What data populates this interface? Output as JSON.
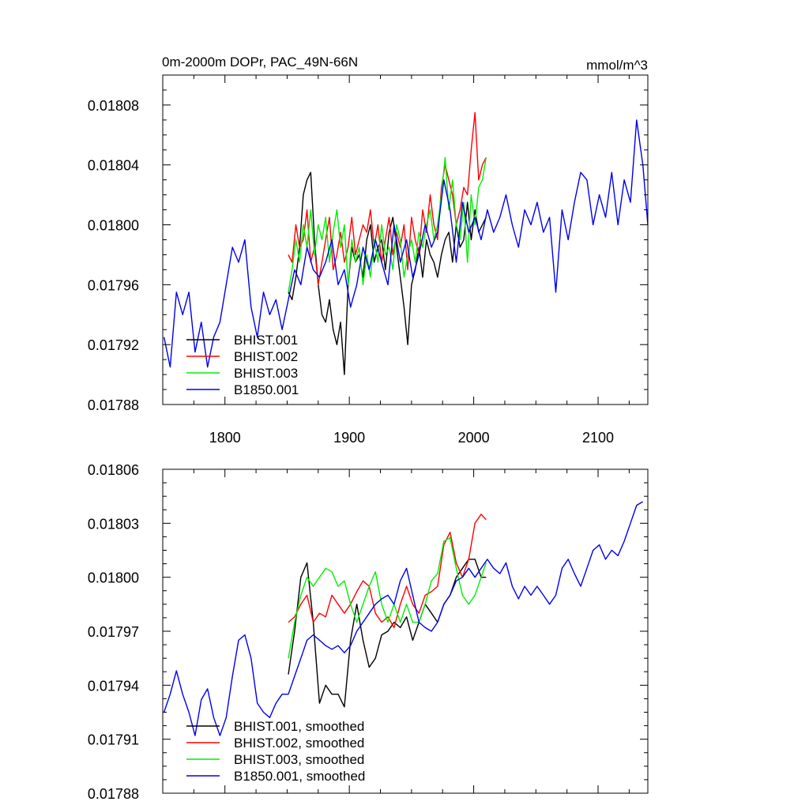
{
  "chart_data": [
    {
      "type": "line",
      "title": "0m-2000m DOPr, PAC_49N-66N",
      "units": "mmol/m^3",
      "xlabel": "",
      "ylabel": "",
      "xlim": [
        1750,
        2140
      ],
      "ylim": [
        0.01788,
        0.0181
      ],
      "x_ticks": [
        1800,
        1900,
        2000,
        2100
      ],
      "x_tick_labels": [
        "1800",
        "1900",
        "2000",
        "2100"
      ],
      "y_ticks": [
        0.01788,
        0.01792,
        0.01796,
        0.018,
        0.01804,
        0.01808
      ],
      "y_tick_labels": [
        "0.01788",
        "0.01792",
        "0.01796",
        "0.01800",
        "0.01804",
        "0.01808"
      ],
      "grid": false,
      "legend_position": "bottom-left",
      "series": [
        {
          "name": "BHIST.001",
          "color": "#000000",
          "x": [
            1851,
            1854,
            1857,
            1860,
            1863,
            1866,
            1869,
            1872,
            1875,
            1878,
            1881,
            1884,
            1887,
            1890,
            1893,
            1896,
            1899,
            1902,
            1905,
            1908,
            1911,
            1914,
            1917,
            1920,
            1923,
            1926,
            1929,
            1932,
            1935,
            1938,
            1941,
            1944,
            1947,
            1950,
            1953,
            1956,
            1959,
            1962,
            1965,
            1968,
            1971,
            1974,
            1977,
            1980,
            1983,
            1986,
            1989,
            1992,
            1995,
            1998,
            2001,
            2004,
            2007,
            2010
          ],
          "y": [
            0.017955,
            0.01795,
            0.017965,
            0.017985,
            0.01802,
            0.01803,
            0.018035,
            0.01799,
            0.01796,
            0.01794,
            0.017935,
            0.01795,
            0.01793,
            0.01792,
            0.017935,
            0.0179,
            0.01796,
            0.017985,
            0.017975,
            0.01798,
            0.017965,
            0.01799,
            0.018,
            0.017975,
            0.017985,
            0.01799,
            0.01797,
            0.017995,
            0.018005,
            0.017985,
            0.017965,
            0.017945,
            0.01792,
            0.01796,
            0.01797,
            0.017985,
            0.017965,
            0.01799,
            0.01798,
            0.017975,
            0.017965,
            0.01798,
            0.01799,
            0.017995,
            0.017975,
            0.018,
            0.017985,
            0.01799,
            0.018015,
            0.01799,
            0.01801,
            0.017995,
            0.018,
            0.018005
          ]
        },
        {
          "name": "BHIST.002",
          "color": "#ff0000",
          "x": [
            1851,
            1854,
            1857,
            1860,
            1863,
            1866,
            1869,
            1872,
            1875,
            1878,
            1881,
            1884,
            1887,
            1890,
            1893,
            1896,
            1899,
            1902,
            1905,
            1908,
            1911,
            1914,
            1917,
            1920,
            1923,
            1926,
            1929,
            1932,
            1935,
            1938,
            1941,
            1944,
            1947,
            1950,
            1953,
            1956,
            1959,
            1962,
            1965,
            1968,
            1971,
            1974,
            1977,
            1980,
            1983,
            1986,
            1989,
            1992,
            1995,
            1998,
            2001,
            2004,
            2007,
            2010
          ],
          "y": [
            0.01798,
            0.017975,
            0.018,
            0.017985,
            0.01799,
            0.01801,
            0.017975,
            0.017985,
            0.01796,
            0.017975,
            0.01799,
            0.018005,
            0.01797,
            0.01798,
            0.017995,
            0.017975,
            0.017985,
            0.018005,
            0.01798,
            0.01799,
            0.018,
            0.017995,
            0.01801,
            0.017985,
            0.018,
            0.017975,
            0.01799,
            0.018005,
            0.01798,
            0.017995,
            0.017985,
            0.018,
            0.01797,
            0.018005,
            0.01799,
            0.01798,
            0.01801,
            0.017995,
            0.01802,
            0.018,
            0.01799,
            0.018025,
            0.01804,
            0.01803,
            0.01802,
            0.018,
            0.01801,
            0.018025,
            0.01802,
            0.01805,
            0.018075,
            0.01803,
            0.01804,
            0.018045
          ]
        },
        {
          "name": "BHIST.003",
          "color": "#00ee00",
          "x": [
            1851,
            1854,
            1857,
            1860,
            1863,
            1866,
            1869,
            1872,
            1875,
            1878,
            1881,
            1884,
            1887,
            1890,
            1893,
            1896,
            1899,
            1902,
            1905,
            1908,
            1911,
            1914,
            1917,
            1920,
            1923,
            1926,
            1929,
            1932,
            1935,
            1938,
            1941,
            1944,
            1947,
            1950,
            1953,
            1956,
            1959,
            1962,
            1965,
            1968,
            1971,
            1974,
            1977,
            1980,
            1983,
            1986,
            1989,
            1992,
            1995,
            1998,
            2001,
            2004,
            2007,
            2010
          ],
          "y": [
            0.017955,
            0.01797,
            0.01799,
            0.017975,
            0.018,
            0.017985,
            0.01801,
            0.01798,
            0.018,
            0.01799,
            0.018005,
            0.017975,
            0.017995,
            0.01801,
            0.017985,
            0.018,
            0.01796,
            0.01799,
            0.017975,
            0.017985,
            0.01796,
            0.01798,
            0.017965,
            0.01799,
            0.017975,
            0.018,
            0.01798,
            0.017985,
            0.01797,
            0.018,
            0.01799,
            0.017965,
            0.01798,
            0.01799,
            0.017975,
            0.017995,
            0.017985,
            0.018,
            0.01801,
            0.01799,
            0.018,
            0.01802,
            0.018045,
            0.01801,
            0.01803,
            0.018,
            0.01799,
            0.018015,
            0.017975,
            0.01802,
            0.018,
            0.018025,
            0.01803,
            0.018045
          ]
        },
        {
          "name": "B1850.001",
          "color": "#0000ee",
          "x": [
            1751,
            1756,
            1761,
            1766,
            1771,
            1776,
            1781,
            1786,
            1791,
            1796,
            1801,
            1806,
            1811,
            1816,
            1821,
            1826,
            1831,
            1836,
            1841,
            1846,
            1851,
            1856,
            1861,
            1866,
            1871,
            1876,
            1881,
            1886,
            1891,
            1896,
            1901,
            1906,
            1911,
            1916,
            1921,
            1926,
            1931,
            1936,
            1941,
            1946,
            1951,
            1956,
            1961,
            1966,
            1971,
            1976,
            1981,
            1986,
            1991,
            1996,
            2001,
            2006,
            2011,
            2016,
            2021,
            2026,
            2031,
            2036,
            2041,
            2046,
            2051,
            2056,
            2061,
            2066,
            2071,
            2076,
            2081,
            2086,
            2091,
            2096,
            2101,
            2106,
            2111,
            2116,
            2121,
            2126,
            2131,
            2136,
            2140
          ],
          "y": [
            0.017925,
            0.017905,
            0.017955,
            0.01794,
            0.017955,
            0.017915,
            0.017935,
            0.017905,
            0.017925,
            0.017935,
            0.01796,
            0.017985,
            0.017975,
            0.01799,
            0.017945,
            0.017925,
            0.017955,
            0.01794,
            0.01795,
            0.01793,
            0.01795,
            0.01797,
            0.01796,
            0.017985,
            0.01797,
            0.017965,
            0.017975,
            0.01799,
            0.01796,
            0.01797,
            0.017945,
            0.01796,
            0.017985,
            0.01797,
            0.01799,
            0.017975,
            0.01796,
            0.018,
            0.017975,
            0.01799,
            0.017965,
            0.01798,
            0.018,
            0.017985,
            0.017995,
            0.01803,
            0.01801,
            0.017975,
            0.018015,
            0.017995,
            0.018005,
            0.01799,
            0.01801,
            0.017995,
            0.018005,
            0.01802,
            0.018,
            0.017985,
            0.01801,
            0.018,
            0.018015,
            0.017995,
            0.018005,
            0.017955,
            0.01801,
            0.01799,
            0.018015,
            0.018035,
            0.01803,
            0.018,
            0.01802,
            0.018005,
            0.018035,
            0.018,
            0.01803,
            0.018015,
            0.01807,
            0.01804,
            0.018
          ]
        }
      ]
    },
    {
      "type": "line",
      "title": "",
      "xlabel": "",
      "ylabel": "",
      "xlim": [
        1750,
        2140
      ],
      "ylim": [
        0.01788,
        0.01806
      ],
      "x_ticks": [
        1800,
        1900,
        2000,
        2100
      ],
      "x_tick_labels": [],
      "y_ticks": [
        0.01788,
        0.01791,
        0.01794,
        0.01797,
        0.018,
        0.01803,
        0.01806
      ],
      "y_tick_labels": [
        "0.01788",
        "0.01791",
        "0.01794",
        "0.01797",
        "0.01800",
        "0.01803",
        "0.01806"
      ],
      "grid": false,
      "legend_position": "bottom-left",
      "series": [
        {
          "name": "BHIST.001, smoothed",
          "color": "#000000",
          "x": [
            1851,
            1856,
            1861,
            1866,
            1871,
            1876,
            1881,
            1886,
            1891,
            1896,
            1901,
            1906,
            1911,
            1916,
            1921,
            1926,
            1931,
            1936,
            1941,
            1946,
            1951,
            1956,
            1961,
            1966,
            1971,
            1976,
            1981,
            1986,
            1991,
            1996,
            2001,
            2006,
            2010
          ],
          "y": [
            0.017946,
            0.01797,
            0.018,
            0.018008,
            0.017975,
            0.01793,
            0.01794,
            0.017935,
            0.017935,
            0.017928,
            0.017965,
            0.017985,
            0.017965,
            0.01795,
            0.017955,
            0.017968,
            0.01797,
            0.017975,
            0.017972,
            0.017978,
            0.017965,
            0.017975,
            0.017985,
            0.01798,
            0.017975,
            0.017985,
            0.01799,
            0.018,
            0.018005,
            0.01801,
            0.01801,
            0.018,
            0.018
          ]
        },
        {
          "name": "BHIST.002, smoothed",
          "color": "#ff0000",
          "x": [
            1851,
            1856,
            1861,
            1866,
            1871,
            1876,
            1881,
            1886,
            1891,
            1896,
            1901,
            1906,
            1911,
            1916,
            1921,
            1926,
            1931,
            1936,
            1941,
            1946,
            1951,
            1956,
            1961,
            1966,
            1971,
            1976,
            1981,
            1986,
            1991,
            1996,
            2001,
            2006,
            2010
          ],
          "y": [
            0.017975,
            0.017978,
            0.017985,
            0.01799,
            0.017975,
            0.01798,
            0.017978,
            0.01799,
            0.017985,
            0.01798,
            0.017985,
            0.017992,
            0.017998,
            0.017995,
            0.01798,
            0.017975,
            0.017978,
            0.017972,
            0.017985,
            0.017995,
            0.017985,
            0.01798,
            0.01799,
            0.017992,
            0.017995,
            0.018018,
            0.018025,
            0.018008,
            0.018,
            0.01801,
            0.01803,
            0.018035,
            0.018032
          ]
        },
        {
          "name": "BHIST.003, smoothed",
          "color": "#00ee00",
          "x": [
            1851,
            1856,
            1861,
            1866,
            1871,
            1876,
            1881,
            1886,
            1891,
            1896,
            1901,
            1906,
            1911,
            1916,
            1921,
            1926,
            1931,
            1936,
            1941,
            1946,
            1951,
            1956,
            1961,
            1966,
            1971,
            1976,
            1981,
            1986,
            1991,
            1996,
            2001,
            2006,
            2010
          ],
          "y": [
            0.017955,
            0.017975,
            0.01799,
            0.018,
            0.017995,
            0.018,
            0.018005,
            0.018003,
            0.017995,
            0.017998,
            0.017985,
            0.017975,
            0.017985,
            0.017995,
            0.018003,
            0.017985,
            0.017975,
            0.017985,
            0.017975,
            0.017985,
            0.017975,
            0.017975,
            0.017985,
            0.017998,
            0.018002,
            0.01802,
            0.018022,
            0.018005,
            0.01799,
            0.017985,
            0.01799,
            0.018,
            0.018008
          ]
        },
        {
          "name": "B1850.001, smoothed",
          "color": "#0000ee",
          "x": [
            1751,
            1756,
            1761,
            1766,
            1771,
            1776,
            1781,
            1786,
            1791,
            1796,
            1801,
            1806,
            1811,
            1816,
            1821,
            1826,
            1831,
            1836,
            1841,
            1846,
            1851,
            1856,
            1861,
            1866,
            1871,
            1876,
            1881,
            1886,
            1891,
            1896,
            1901,
            1906,
            1911,
            1916,
            1921,
            1926,
            1931,
            1936,
            1941,
            1946,
            1951,
            1956,
            1961,
            1966,
            1971,
            1976,
            1981,
            1986,
            1991,
            1996,
            2001,
            2006,
            2011,
            2016,
            2021,
            2026,
            2031,
            2036,
            2041,
            2046,
            2051,
            2056,
            2061,
            2066,
            2071,
            2076,
            2081,
            2086,
            2091,
            2096,
            2101,
            2106,
            2111,
            2116,
            2121,
            2126,
            2131,
            2136
          ],
          "y": [
            0.017925,
            0.017935,
            0.017948,
            0.017935,
            0.017925,
            0.017912,
            0.017932,
            0.017938,
            0.017922,
            0.017912,
            0.017922,
            0.017945,
            0.017965,
            0.017968,
            0.017955,
            0.01793,
            0.017925,
            0.017922,
            0.01793,
            0.017935,
            0.017935,
            0.017945,
            0.017955,
            0.017965,
            0.017968,
            0.017965,
            0.017962,
            0.01796,
            0.017962,
            0.017958,
            0.017962,
            0.01797,
            0.017975,
            0.01798,
            0.017985,
            0.017988,
            0.01799,
            0.017985,
            0.017998,
            0.018005,
            0.01799,
            0.017975,
            0.017972,
            0.01797,
            0.017975,
            0.017985,
            0.01799,
            0.017998,
            0.018,
            0.018005,
            0.018,
            0.018005,
            0.01801,
            0.018005,
            0.018002,
            0.018008,
            0.017995,
            0.017988,
            0.017995,
            0.01799,
            0.017995,
            0.01799,
            0.017985,
            0.01799,
            0.018005,
            0.01801,
            0.018002,
            0.017995,
            0.018005,
            0.018015,
            0.018018,
            0.01801,
            0.018015,
            0.018012,
            0.01802,
            0.01803,
            0.01804,
            0.018042
          ]
        }
      ]
    }
  ]
}
